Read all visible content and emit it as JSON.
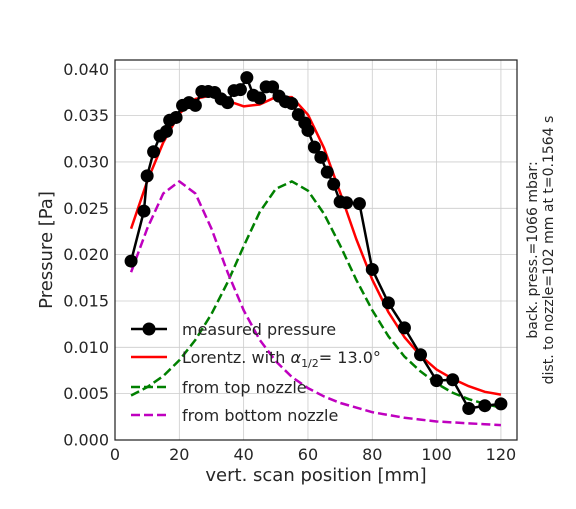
{
  "chart_data": {
    "type": "line",
    "xlabel": "vert. scan position [mm]",
    "ylabel": "Pressure [Pa]",
    "xlim": [
      0,
      125
    ],
    "ylim": [
      0,
      0.041
    ],
    "xticks": [
      "0",
      "20",
      "40",
      "60",
      "80",
      "100",
      "120"
    ],
    "yticks": [
      "0.000",
      "0.005",
      "0.010",
      "0.015",
      "0.020",
      "0.025",
      "0.030",
      "0.035",
      "0.040"
    ],
    "grid": true,
    "legend_position": "lower-left",
    "side_note": [
      "back. press.=1066 mbar:",
      "dist. to nozzle=102 mm at t=0.1564 s"
    ],
    "series": [
      {
        "name": "measured pressure",
        "style": "black line with circle markers",
        "color": "#000000",
        "x": [
          5,
          9,
          10,
          12,
          14,
          16,
          17,
          19,
          21,
          23,
          25,
          27,
          29,
          31,
          33,
          35,
          37,
          39,
          41,
          43,
          45,
          47,
          49,
          51,
          53,
          55,
          57,
          59,
          60,
          62,
          64,
          66,
          68,
          70,
          72,
          76,
          80,
          85,
          90,
          95,
          100,
          105,
          110,
          115,
          120
        ],
        "y": [
          0.0193,
          0.0247,
          0.0285,
          0.0311,
          0.0328,
          0.0333,
          0.0345,
          0.0348,
          0.0361,
          0.0364,
          0.0361,
          0.0376,
          0.0376,
          0.0375,
          0.0368,
          0.0364,
          0.0377,
          0.0378,
          0.0391,
          0.0372,
          0.0369,
          0.0381,
          0.0381,
          0.0371,
          0.0365,
          0.0363,
          0.0351,
          0.0342,
          0.0334,
          0.0316,
          0.0305,
          0.0289,
          0.0276,
          0.0257,
          0.0256,
          0.0255,
          0.0184,
          0.0148,
          0.0121,
          0.0092,
          0.0064,
          0.0065,
          0.0034,
          0.0037,
          0.0039
        ]
      },
      {
        "name_prefix": "Lorentz. with ",
        "name_math": "α",
        "name_sub": "1/2",
        "name_suffix": "= 13.0°",
        "style": "solid",
        "color": "#ff0000",
        "x": [
          5,
          10,
          15,
          20,
          25,
          30,
          35,
          40,
          45,
          50,
          55,
          60,
          65,
          70,
          75,
          80,
          85,
          90,
          95,
          100,
          105,
          110,
          115,
          120
        ],
        "y": [
          0.0228,
          0.0279,
          0.0321,
          0.0352,
          0.0368,
          0.0372,
          0.0366,
          0.036,
          0.0362,
          0.037,
          0.037,
          0.0351,
          0.0315,
          0.0267,
          0.0217,
          0.0173,
          0.0138,
          0.0111,
          0.0091,
          0.0076,
          0.0066,
          0.0058,
          0.0052,
          0.0049
        ]
      },
      {
        "name": "from top nozzle",
        "style": "dashed",
        "color": "#008000",
        "x": [
          5,
          10,
          15,
          20,
          25,
          30,
          35,
          40,
          45,
          50,
          55,
          60,
          65,
          70,
          75,
          80,
          85,
          90,
          95,
          100,
          105,
          110,
          115,
          120
        ],
        "y": [
          0.0048,
          0.0057,
          0.0069,
          0.0086,
          0.0108,
          0.0136,
          0.017,
          0.0209,
          0.0246,
          0.0271,
          0.0279,
          0.0269,
          0.0244,
          0.021,
          0.0173,
          0.014,
          0.0112,
          0.009,
          0.0074,
          0.0061,
          0.0051,
          0.0044,
          0.0039,
          0.0035
        ]
      },
      {
        "name": "from bottom nozzle",
        "style": "dashed",
        "color": "#bf00bf",
        "x": [
          5,
          10,
          15,
          20,
          25,
          30,
          35,
          40,
          45,
          50,
          55,
          60,
          65,
          70,
          75,
          80,
          85,
          90,
          95,
          100,
          105,
          110,
          115,
          120
        ],
        "y": [
          0.0181,
          0.0228,
          0.0266,
          0.0279,
          0.0266,
          0.0228,
          0.0181,
          0.014,
          0.0108,
          0.0085,
          0.0068,
          0.0056,
          0.0047,
          0.004,
          0.0035,
          0.003,
          0.0027,
          0.0024,
          0.0022,
          0.002,
          0.0019,
          0.0018,
          0.0017,
          0.0016
        ]
      }
    ]
  }
}
